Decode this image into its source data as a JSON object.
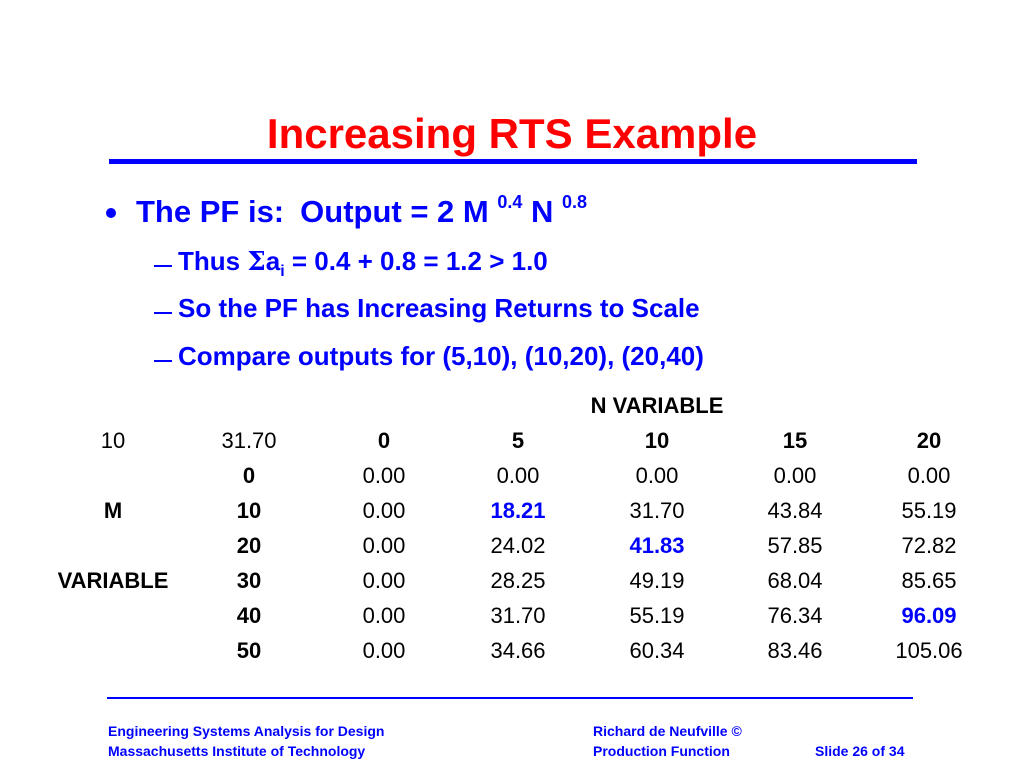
{
  "slide": {
    "title": "Increasing RTS Example",
    "bullet": {
      "lead": "The PF is:",
      "formula_part1": "Output = 2 M",
      "exp1": "0.4",
      "formula_part2": "N",
      "exp2": "0.8"
    },
    "subbullets": {
      "sum": {
        "thus": "Thus",
        "sigma": "Σ",
        "a": "a",
        "i": "i",
        "rest": " = 0.4 + 0.8 = 1.2 > 1.0"
      },
      "irs": "So the PF has Increasing Returns to Scale",
      "compare": "Compare outputs for (5,10), (10,20), (20,40)"
    }
  },
  "table": {
    "n_variable_label": "N VARIABLE",
    "corner_left": "10",
    "corner_value": "31.70",
    "m_label": "M",
    "variable_label": "VARIABLE",
    "n_headers": [
      "0",
      "5",
      "10",
      "15",
      "20"
    ],
    "rows": [
      {
        "m": "0",
        "values": [
          "0.00",
          "0.00",
          "0.00",
          "0.00",
          "0.00"
        ]
      },
      {
        "m": "10",
        "values": [
          "0.00",
          "18.21",
          "31.70",
          "43.84",
          "55.19"
        ]
      },
      {
        "m": "20",
        "values": [
          "0.00",
          "24.02",
          "41.83",
          "57.85",
          "72.82"
        ]
      },
      {
        "m": "30",
        "values": [
          "0.00",
          "28.25",
          "49.19",
          "68.04",
          "85.65"
        ]
      },
      {
        "m": "40",
        "values": [
          "0.00",
          "31.70",
          "55.19",
          "76.34",
          "96.09"
        ]
      },
      {
        "m": "50",
        "values": [
          "0.00",
          "34.66",
          "60.34",
          "83.46",
          "105.06"
        ]
      }
    ],
    "highlighted": [
      "18.21",
      "41.83",
      "96.09"
    ]
  },
  "footer": {
    "left_line1": "Engineering Systems Analysis for Design",
    "left_line2": "Massachusetts Institute of Technology",
    "right_line1": "Richard de Neufville  ©",
    "right_line2": "Production Function",
    "slide_num": "Slide 26 of 34"
  },
  "colors": {
    "title": "#ff0000",
    "accent": "#0000ff",
    "text": "#000000"
  }
}
